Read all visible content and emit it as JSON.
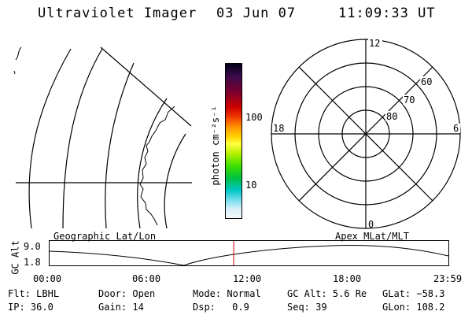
{
  "header": {
    "title": "Ultraviolet Imager",
    "date": "03 Jun 07",
    "time": "11:09:33 UT"
  },
  "colorbar": {
    "unit_label": "photon cm⁻²s⁻¹",
    "tick_labels": [
      "100",
      "10"
    ]
  },
  "polar": {
    "mlt_labels": {
      "top": "12",
      "bottom": "0",
      "left": "18",
      "right": "6"
    },
    "lat_labels": [
      "60",
      "70",
      "80"
    ]
  },
  "panels": {
    "left_label": "Geographic Lat/Lon",
    "right_label": "Apex MLat/MLT"
  },
  "altitude_plot": {
    "ylabel": "GC Alt",
    "y_ticks": [
      "9.0",
      "1.8"
    ],
    "x_ticks": [
      "00:00",
      "06:00",
      "12:00",
      "18:00",
      "23:59"
    ],
    "current_time_color": "#cc0000"
  },
  "footer": {
    "row1": [
      {
        "label": "Flt:",
        "value": "LBHL"
      },
      {
        "label": "Door:",
        "value": "Open"
      },
      {
        "label": "Mode:",
        "value": "Normal"
      },
      {
        "label": "GC Alt:",
        "value": "5.6 Re"
      },
      {
        "label": "GLat:",
        "value": "−58.3"
      }
    ],
    "row2": [
      {
        "label": "IP:",
        "value": "36.0"
      },
      {
        "label": "Gain:",
        "value": "14"
      },
      {
        "label": "Dsp:",
        "value": "0.9"
      },
      {
        "label": "Seq:",
        "value": "39"
      },
      {
        "label": "GLon:",
        "value": "108.2"
      }
    ]
  }
}
